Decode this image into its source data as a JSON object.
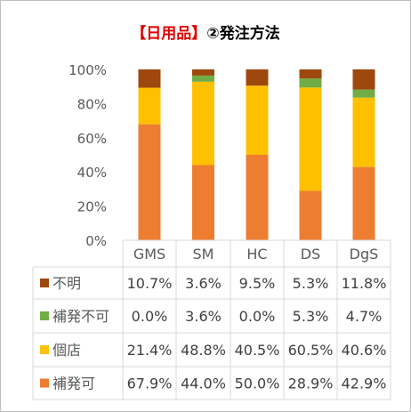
{
  "chart_data": {
    "type": "bar",
    "stacked": true,
    "title_highlight": "【日用品】",
    "title_rest": "②発注方法",
    "categories": [
      "GMS",
      "SM",
      "HC",
      "DS",
      "DgS"
    ],
    "ylim": [
      0,
      100
    ],
    "yticks": [
      "0%",
      "20%",
      "40%",
      "60%",
      "80%",
      "100%"
    ],
    "grid": false,
    "legend": "table-below",
    "series": [
      {
        "name": "補発可",
        "color": "#ed7d31",
        "values": [
          67.9,
          44.0,
          50.0,
          28.9,
          42.9
        ],
        "labels": [
          "67.9%",
          "44.0%",
          "50.0%",
          "28.9%",
          "42.9%"
        ]
      },
      {
        "name": "個店",
        "color": "#ffc000",
        "values": [
          21.4,
          48.8,
          40.5,
          60.5,
          40.6
        ],
        "labels": [
          "21.4%",
          "48.8%",
          "40.5%",
          "60.5%",
          "40.6%"
        ]
      },
      {
        "name": "補発不可",
        "color": "#70ad47",
        "values": [
          0.0,
          3.6,
          0.0,
          5.3,
          4.7
        ],
        "labels": [
          "0.0%",
          "3.6%",
          "0.0%",
          "5.3%",
          "4.7%"
        ]
      },
      {
        "name": "不明",
        "color": "#9e480e",
        "values": [
          10.7,
          3.6,
          9.5,
          5.3,
          11.8
        ],
        "labels": [
          "10.7%",
          "3.6%",
          "9.5%",
          "5.3%",
          "11.8%"
        ]
      }
    ]
  }
}
